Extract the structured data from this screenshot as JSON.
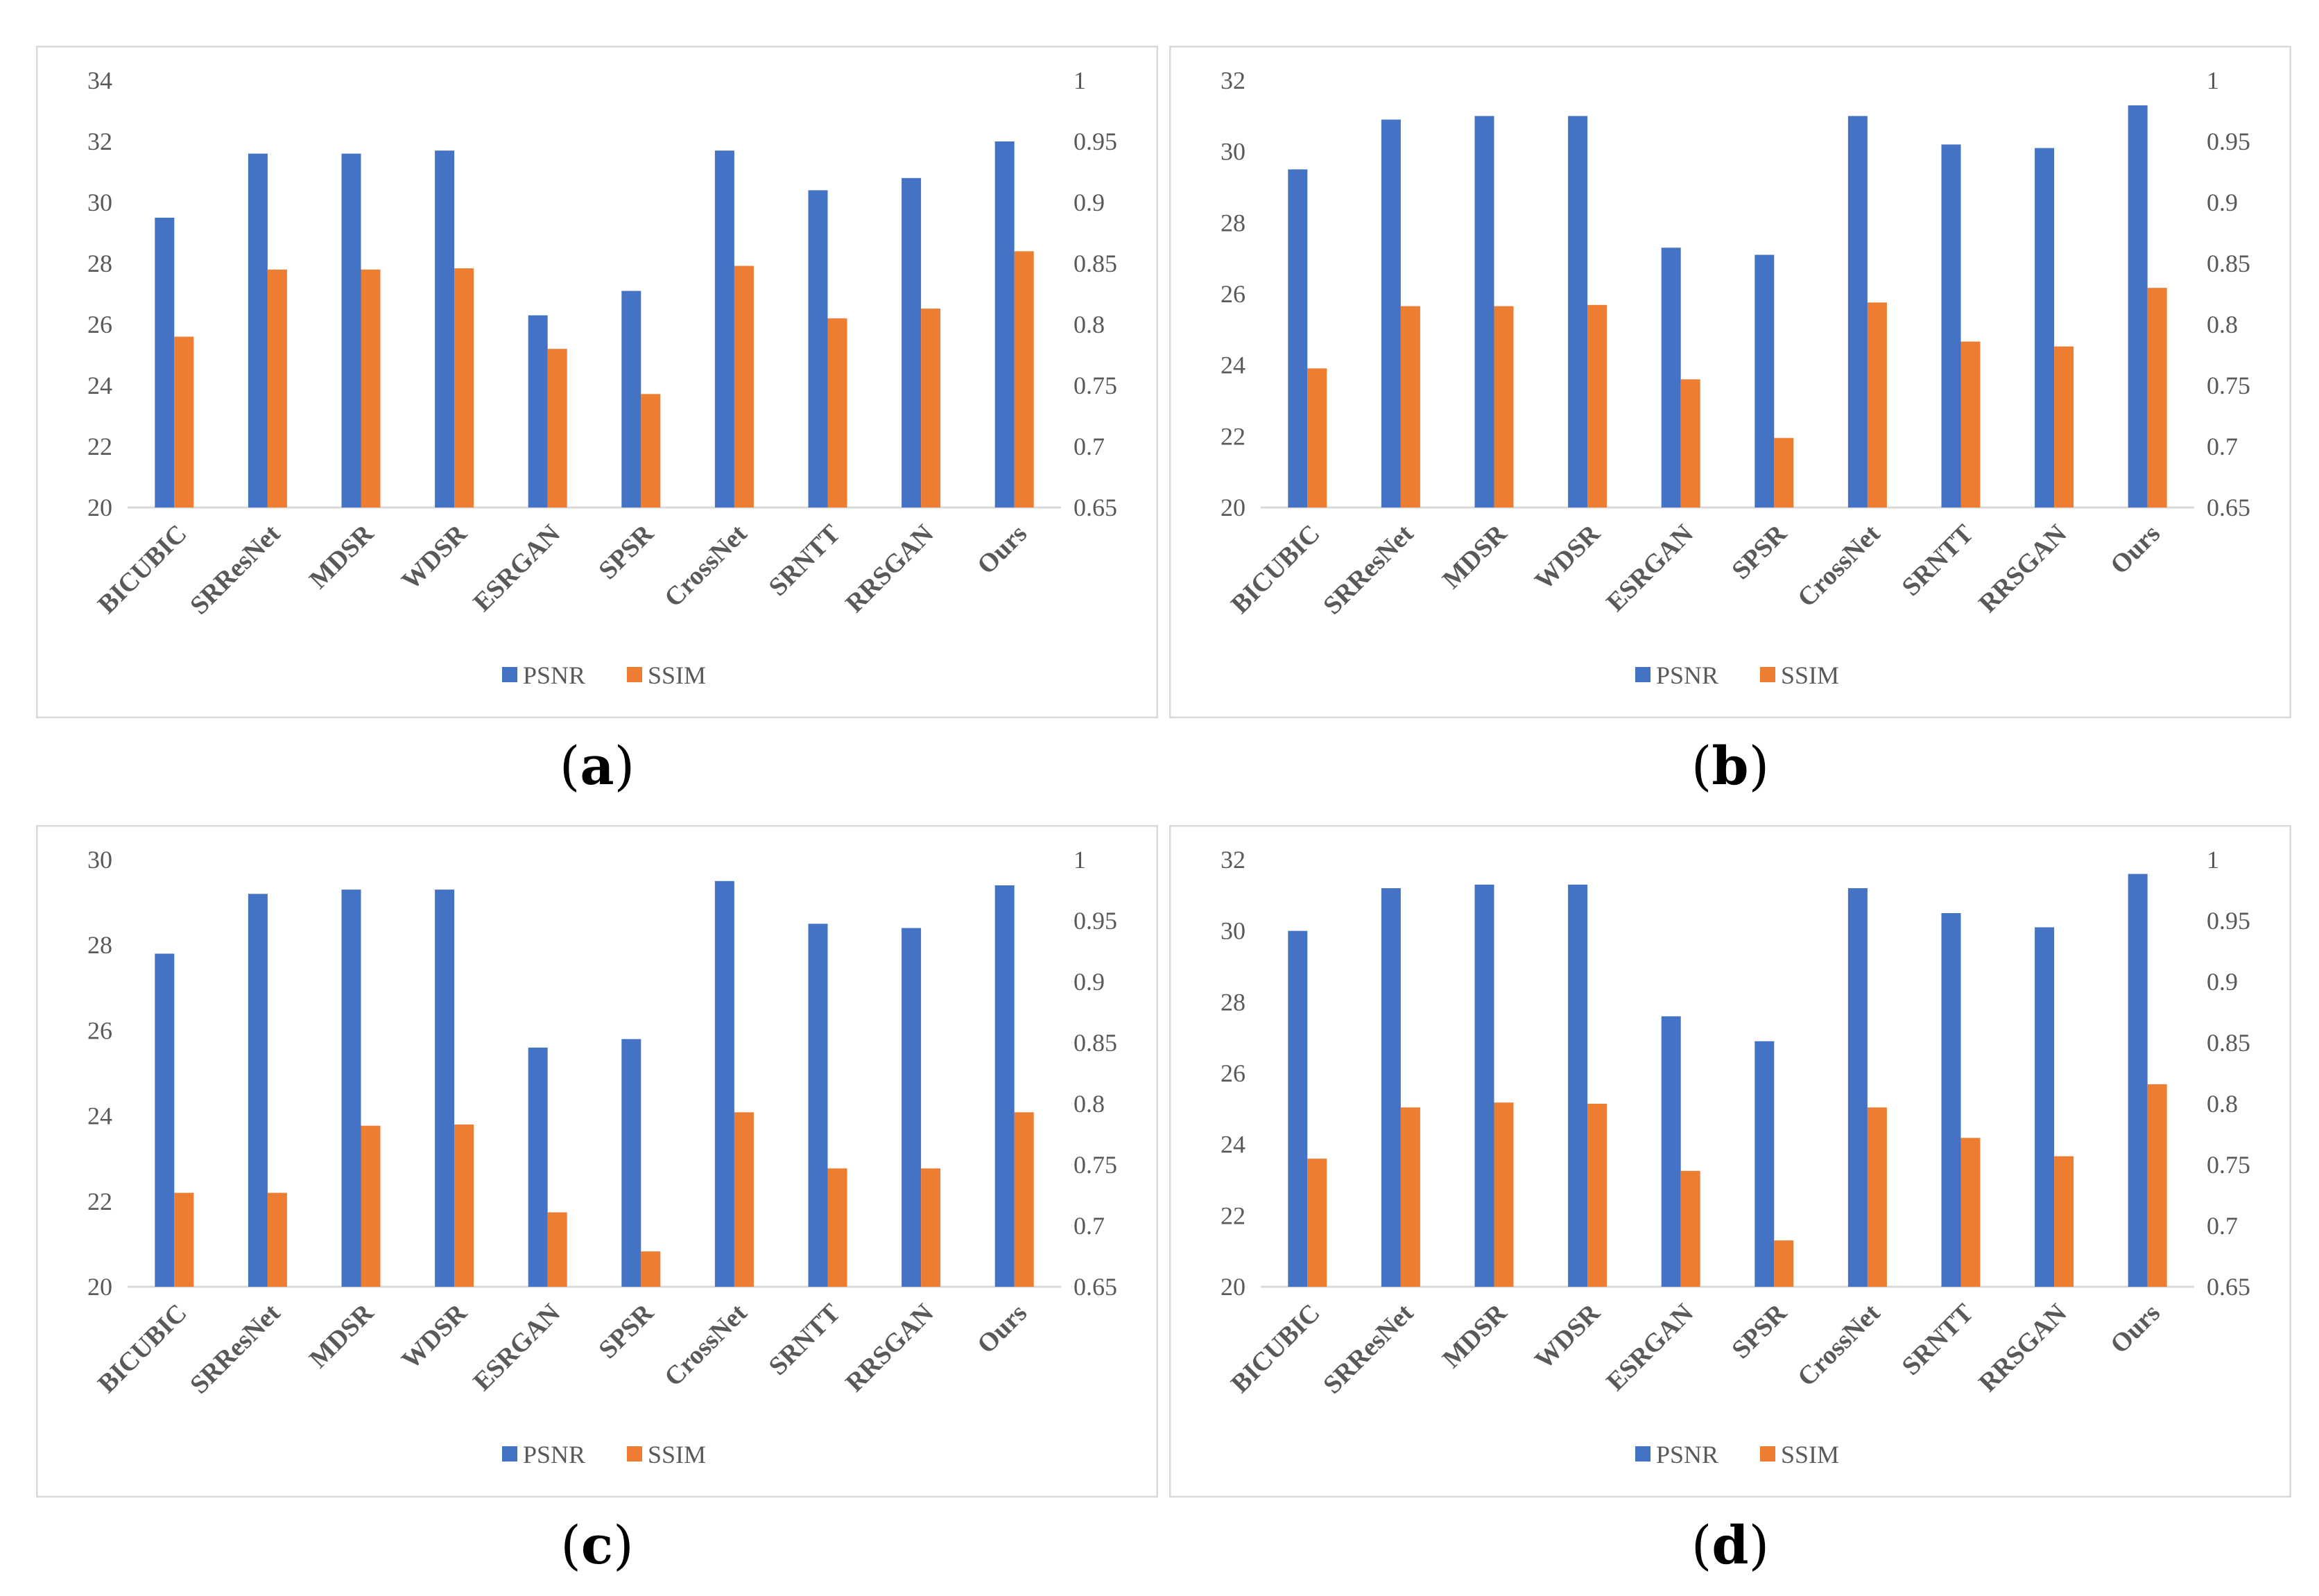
{
  "colors": {
    "psnr": "#4472C4",
    "ssim": "#ED7D31",
    "frame": "#d9d9d9",
    "text": "#595959"
  },
  "legend": {
    "psnr": "PSNR",
    "ssim": "SSIM",
    "placement": "bottom-center"
  },
  "captions": [
    "a",
    "b",
    "c",
    "d"
  ],
  "chart_data": [
    {
      "type": "bar",
      "categories": [
        "BICUBIC",
        "SRResNet",
        "MDSR",
        "WDSR",
        "ESRGAN",
        "SPSR",
        "CrossNet",
        "SRNTT",
        "RRSGAN",
        "Ours"
      ],
      "series": [
        {
          "name": "PSNR",
          "axis": "left",
          "values": [
            29.5,
            31.6,
            31.6,
            31.7,
            26.3,
            27.1,
            31.7,
            30.4,
            30.8,
            32.0
          ]
        },
        {
          "name": "SSIM",
          "axis": "right",
          "values": [
            0.79,
            0.845,
            0.845,
            0.846,
            0.78,
            0.743,
            0.848,
            0.805,
            0.813,
            0.86
          ]
        }
      ],
      "ylim": [
        20,
        34
      ],
      "yticks": [
        "20",
        "22",
        "24",
        "26",
        "28",
        "30",
        "32",
        "34"
      ],
      "y2lim": [
        0.65,
        1
      ],
      "y2ticks": [
        "0.65",
        "0.7",
        "0.75",
        "0.8",
        "0.85",
        "0.9",
        "0.95",
        "1"
      ],
      "grid": false
    },
    {
      "type": "bar",
      "categories": [
        "BICUBIC",
        "SRResNet",
        "MDSR",
        "WDSR",
        "ESRGAN",
        "SPSR",
        "CrossNet",
        "SRNTT",
        "RRSGAN",
        "Ours"
      ],
      "series": [
        {
          "name": "PSNR",
          "axis": "left",
          "values": [
            29.5,
            30.9,
            31.0,
            31.0,
            27.3,
            27.1,
            31.0,
            30.2,
            30.1,
            31.3
          ]
        },
        {
          "name": "SSIM",
          "axis": "right",
          "values": [
            0.764,
            0.815,
            0.815,
            0.816,
            0.755,
            0.707,
            0.818,
            0.786,
            0.782,
            0.83
          ]
        }
      ],
      "ylim": [
        20,
        32
      ],
      "yticks": [
        "20",
        "22",
        "24",
        "26",
        "28",
        "30",
        "32"
      ],
      "y2lim": [
        0.65,
        1
      ],
      "y2ticks": [
        "0.65",
        "0.7",
        "0.75",
        "0.8",
        "0.85",
        "0.9",
        "0.95",
        "1"
      ],
      "grid": false
    },
    {
      "type": "bar",
      "categories": [
        "BICUBIC",
        "SRResNet",
        "MDSR",
        "WDSR",
        "ESRGAN",
        "SPSR",
        "CrossNet",
        "SRNTT",
        "RRSGAN",
        "Ours"
      ],
      "series": [
        {
          "name": "PSNR",
          "axis": "left",
          "values": [
            27.8,
            29.2,
            29.3,
            29.3,
            25.6,
            25.8,
            29.5,
            28.5,
            28.4,
            29.4
          ]
        },
        {
          "name": "SSIM",
          "axis": "right",
          "values": [
            0.727,
            0.727,
            0.782,
            0.783,
            0.711,
            0.679,
            0.793,
            0.747,
            0.747,
            0.793
          ]
        }
      ],
      "ylim": [
        20,
        30
      ],
      "yticks": [
        "20",
        "22",
        "24",
        "26",
        "28",
        "30"
      ],
      "y2lim": [
        0.65,
        1
      ],
      "y2ticks": [
        "0.65",
        "0.7",
        "0.75",
        "0.8",
        "0.85",
        "0.9",
        "0.95",
        "1"
      ],
      "grid": false
    },
    {
      "type": "bar",
      "categories": [
        "BICUBIC",
        "SRResNet",
        "MDSR",
        "WDSR",
        "ESRGAN",
        "SPSR",
        "CrossNet",
        "SRNTT",
        "RRSGAN",
        "Ours"
      ],
      "series": [
        {
          "name": "PSNR",
          "axis": "left",
          "values": [
            30.0,
            31.2,
            31.3,
            31.3,
            27.6,
            26.9,
            31.2,
            30.5,
            30.1,
            31.6
          ]
        },
        {
          "name": "SSIM",
          "axis": "right",
          "values": [
            0.755,
            0.797,
            0.801,
            0.8,
            0.745,
            0.688,
            0.797,
            0.772,
            0.757,
            0.816
          ]
        }
      ],
      "ylim": [
        20,
        32
      ],
      "yticks": [
        "20",
        "22",
        "24",
        "26",
        "28",
        "30",
        "32"
      ],
      "y2lim": [
        0.65,
        1
      ],
      "y2ticks": [
        "0.65",
        "0.7",
        "0.75",
        "0.8",
        "0.85",
        "0.9",
        "0.95",
        "1"
      ],
      "grid": false
    }
  ]
}
